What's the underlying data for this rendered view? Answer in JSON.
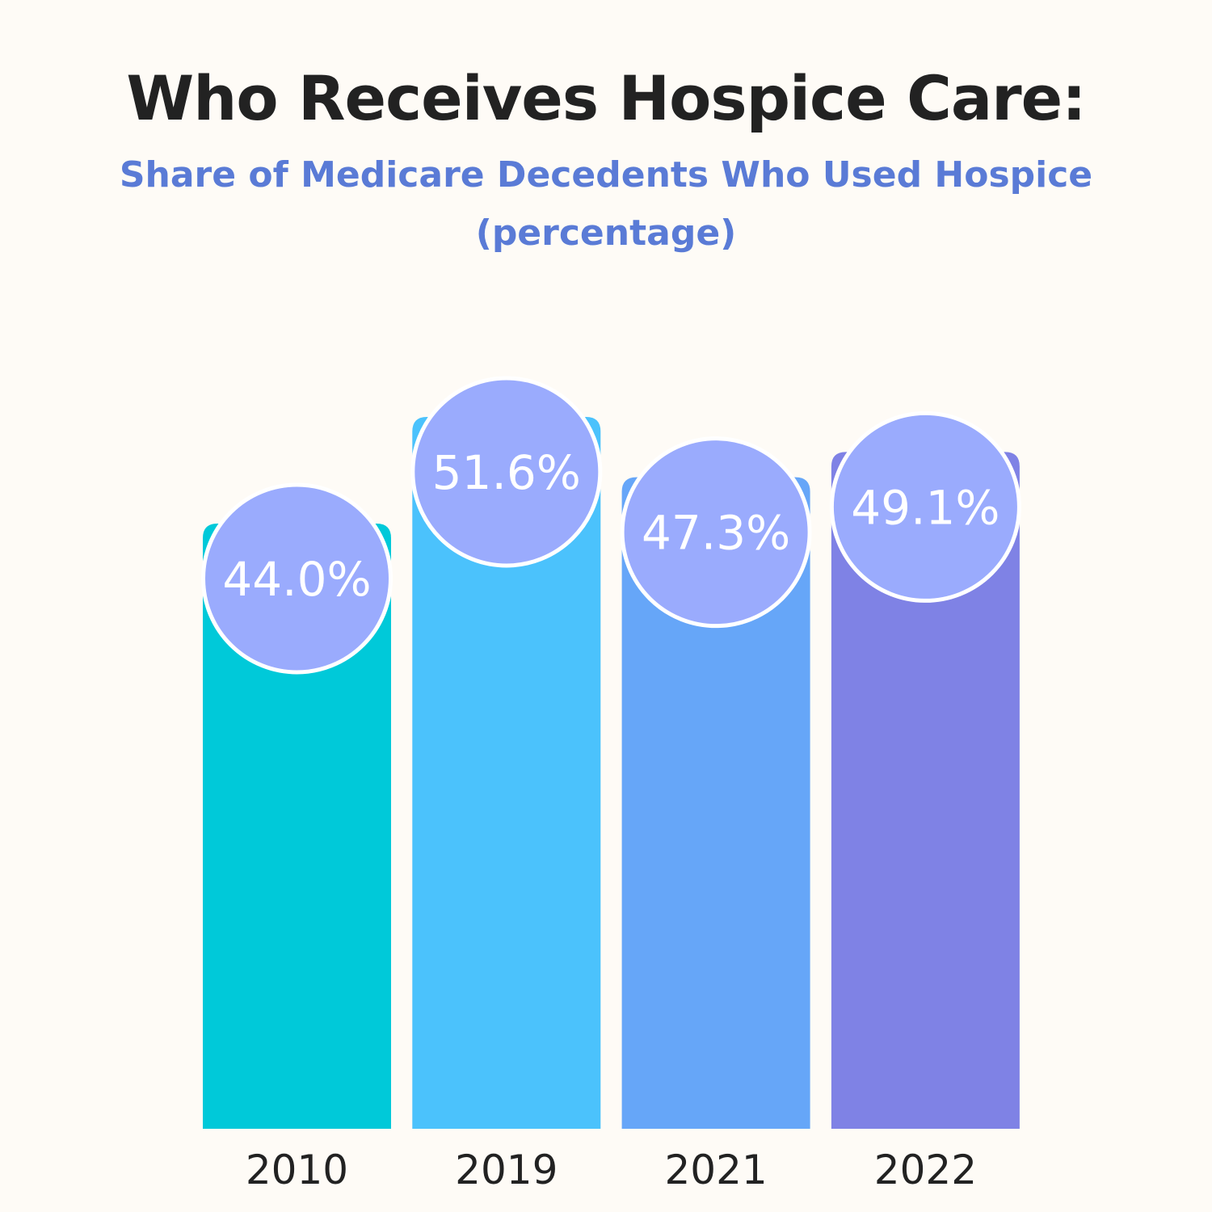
{
  "chart_data": {
    "type": "bar",
    "title": "Who Receives Hospice Care:",
    "subtitle": "Share of Medicare Decedents Who Used Hospice",
    "unit_label": "(percentage)",
    "categories": [
      "2010",
      "2019",
      "2021",
      "2022"
    ],
    "values": [
      44.0,
      51.6,
      47.3,
      49.1
    ],
    "value_labels": [
      "44.0%",
      "51.6%",
      "47.3%",
      "49.1%"
    ],
    "colors": [
      "#00c9d9",
      "#4bc2fc",
      "#66a6f8",
      "#7f82e5"
    ],
    "bubble_color": "#9aabfd",
    "xlabel": "",
    "ylabel": "",
    "grid": false,
    "legend": "none"
  }
}
